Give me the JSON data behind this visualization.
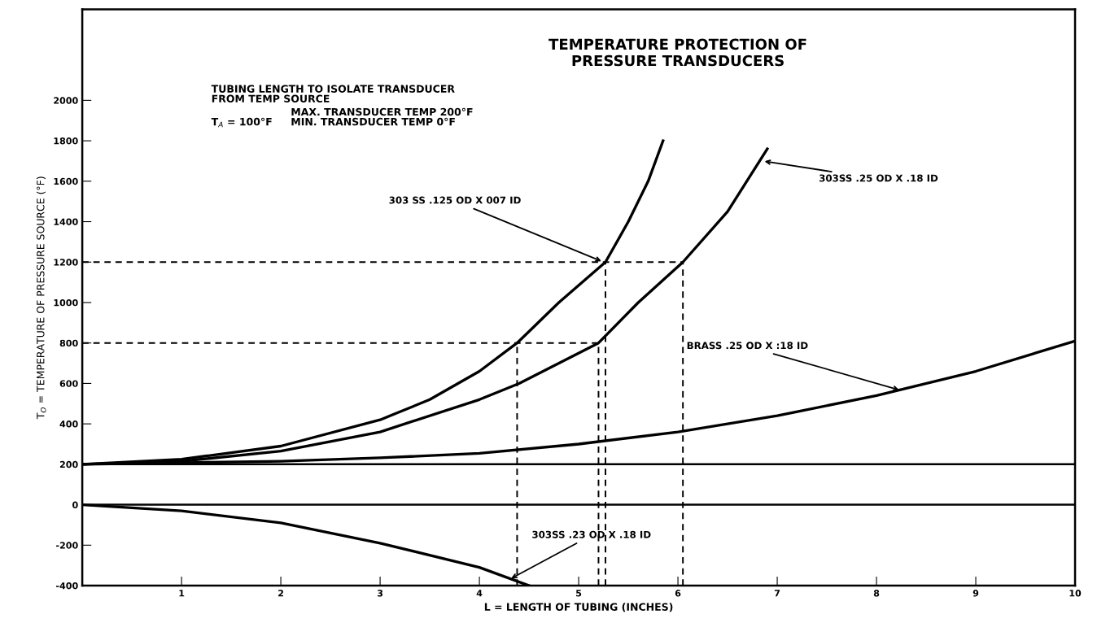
{
  "chart_data": {
    "type": "line",
    "title": "TEMPERATURE PROTECTION OF\nPRESSURE TRANSDUCERS",
    "xlabel": "L = LENGTH OF TUBING (INCHES)",
    "ylabel": "T$_{O}$ = TEMPERATURE OF PRESSURE SOURCE (°F)",
    "xlim": [
      0,
      10
    ],
    "xticks": [
      {
        "value": 0,
        "label": null
      },
      1,
      2,
      3,
      4,
      5,
      6,
      7,
      8,
      9,
      10
    ],
    "ylim": [
      -400,
      2450
    ],
    "yticks": [
      -400,
      -200,
      0,
      200,
      400,
      600,
      800,
      1000,
      1200,
      1400,
      1600,
      1800,
      2000
    ],
    "grid": false,
    "legend": false,
    "marker": "none",
    "ref_lines": [
      {
        "axis": "y",
        "value": 200,
        "color": "#000000",
        "line_style": "solid"
      },
      {
        "axis": "y",
        "value": 0,
        "color": "#000000",
        "line_style": "solid"
      }
    ],
    "series": [
      {
        "color": "#000000",
        "line_style": "solid",
        "x": [
          0,
          1,
          2,
          3,
          3.5,
          4,
          4.38,
          4.8,
          5.27,
          5.5,
          5.7,
          5.85
        ],
        "values": [
          200,
          225,
          290,
          420,
          520,
          660,
          800,
          1000,
          1200,
          1400,
          1600,
          1800
        ]
      },
      {
        "color": "#000000",
        "line_style": "solid",
        "x": [
          0,
          1,
          2,
          3,
          4,
          4.4,
          5.2,
          5.6,
          6.05,
          6.5,
          6.9
        ],
        "values": [
          200,
          215,
          265,
          360,
          520,
          600,
          800,
          1000,
          1200,
          1450,
          1760
        ]
      },
      {
        "color": "#000000",
        "line_style": "solid",
        "x": [
          0,
          2,
          3,
          4,
          5,
          6,
          7,
          8,
          9,
          10
        ],
        "values": [
          200,
          215,
          232,
          254,
          300,
          360,
          440,
          540,
          660,
          810
        ]
      },
      {
        "color": "#000000",
        "line_style": "solid",
        "x": [
          0,
          1,
          2,
          3,
          4,
          4.5
        ],
        "values": [
          0,
          -30,
          -90,
          -190,
          -310,
          -400
        ]
      },
      {
        "color": "#000000",
        "line_style": "dashed",
        "x": [
          0,
          6.05
        ],
        "values": [
          1200,
          1200
        ]
      },
      {
        "color": "#000000",
        "line_style": "dashed",
        "x": [
          0,
          5.2
        ],
        "values": [
          800,
          800
        ]
      },
      {
        "color": "#000000",
        "line_style": "dashed",
        "x": [
          4.38,
          4.38
        ],
        "values": [
          -400,
          800
        ]
      },
      {
        "color": "#000000",
        "line_style": "dashed",
        "x": [
          5.2,
          5.2
        ],
        "values": [
          -400,
          800
        ]
      },
      {
        "color": "#000000",
        "line_style": "dashed",
        "x": [
          5.27,
          5.27
        ],
        "values": [
          -400,
          1200
        ]
      },
      {
        "color": "#000000",
        "line_style": "dashed",
        "x": [
          6.05,
          6.05
        ],
        "values": [
          -400,
          1200
        ]
      }
    ],
    "annotations": [
      "TUBING LENGTH TO ISOLATE TRANSDUCER\nFROM TEMP SOURCE",
      "T$_{A}$ = 100°F",
      "MAX. TRANSDUCER TEMP 200°F\nMIN. TRANSDUCER TEMP 0°F",
      {
        "text": "303 SS .125 OD X 007 ID",
        "x": 5.25,
        "y": 1200
      },
      {
        "text": "303SS .25 OD X .18 ID",
        "x": 6.85,
        "y": 1700
      },
      {
        "text": "BRASS .25 OD X :18 ID",
        "x": 8.25,
        "y": 565
      },
      {
        "text": "303SS .23 OD X .18 ID",
        "x": 4.3,
        "y": -370
      }
    ]
  }
}
